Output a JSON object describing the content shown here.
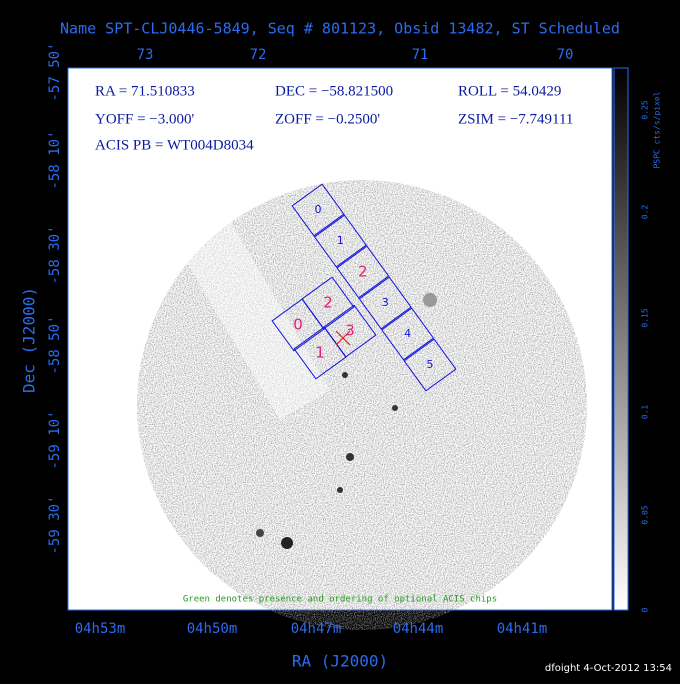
{
  "header": {
    "title": "Name SPT-CLJ0446-5849, Seq # 801123, Obsid 13482, ST Scheduled"
  },
  "top_axis": {
    "ticks": [
      "73",
      "72",
      "71",
      "70"
    ]
  },
  "left_axis": {
    "label": "Dec (J2000)",
    "ticks": [
      "-57 50'",
      "-58 10'",
      "-58 30'",
      "-58 50'",
      "-59 10'",
      "-59 30'"
    ]
  },
  "bottom_axis": {
    "label": "RA (J2000)",
    "ticks": [
      "04h53m",
      "04h50m",
      "04h47m",
      "04h44m",
      "04h41m"
    ]
  },
  "info": {
    "ra": "RA = 71.510833",
    "dec": "DEC = −58.821500",
    "roll": "ROLL = 54.0429",
    "yoff": "YOFF =  −3.000'",
    "zoff": "ZOFF = −0.2500'",
    "zsim": "ZSIM = −7.749111",
    "acis_pb": "ACIS PB = WT004D8034"
  },
  "colorbar": {
    "label": "PSPC cts/s/pixel",
    "ticks": [
      "0",
      "0.05",
      "0.1",
      "0.15",
      "0.2",
      "0.25"
    ]
  },
  "note": "Green denotes presence and ordering of optional ACIS chips",
  "acis_i": {
    "chips": [
      "0",
      "1",
      "2",
      "3"
    ]
  },
  "acis_s": {
    "chips": [
      "0",
      "1",
      "2",
      "3",
      "4",
      "5"
    ]
  },
  "footer": "dfoight  4-Oct-2012 13:54"
}
